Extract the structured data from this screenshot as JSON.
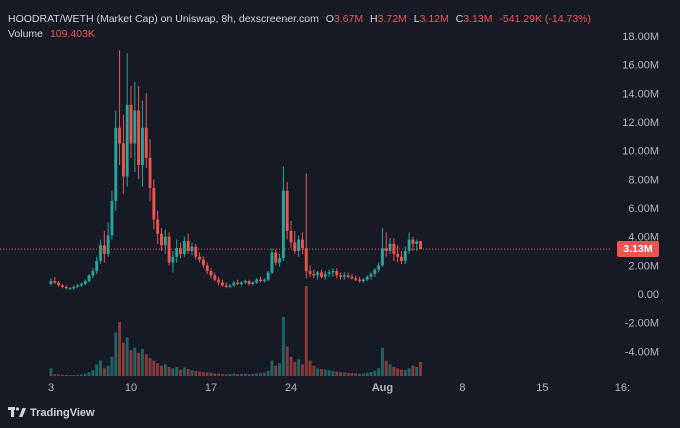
{
  "header": {
    "pair": "HOODRAT/WETH (Market Cap) on Uniswap, 8h, dexscreener.com",
    "open_label": "O",
    "open": "3.67M",
    "high_label": "H",
    "high": "3.72M",
    "low_label": "L",
    "low": "3.12M",
    "close_label": "C",
    "close": "3.13M",
    "change": "-541.29K (-14.73%)",
    "volume_label": "Volume",
    "volume": "109.403K"
  },
  "price_tag": "3.13M",
  "branding": "TradingView",
  "colors": {
    "background": "#161a25",
    "up": "#26a69a",
    "down": "#ef5350",
    "text": "#b2b5be"
  },
  "chart_data": {
    "type": "candlestick",
    "y_unit": "market cap (USD)",
    "ylim": [
      -5.0,
      18.5
    ],
    "y_ticks": [
      "18.00M",
      "16.00M",
      "14.00M",
      "12.00M",
      "10.00M",
      "8.00M",
      "6.00M",
      "4.00M",
      "2.00M",
      "0.00",
      "-2.00M",
      "-4.00M"
    ],
    "y_tick_values": [
      18,
      16,
      14,
      12,
      10,
      8,
      6,
      4,
      2,
      0,
      -2,
      -4
    ],
    "x_ticks": [
      "3",
      "10",
      "17",
      "24",
      "Aug",
      "8",
      "15",
      "16:"
    ],
    "x_tick_days": [
      3,
      10,
      17,
      24,
      32,
      39,
      46,
      53
    ],
    "grid": false,
    "last_price": 3.13,
    "candles_per_day": 3,
    "first_candle_day": 3,
    "ohlc_millions": [
      [
        0.7,
        1.1,
        0.6,
        0.9
      ],
      [
        0.9,
        1.2,
        0.7,
        0.8
      ],
      [
        0.8,
        0.9,
        0.5,
        0.6
      ],
      [
        0.6,
        0.7,
        0.4,
        0.5
      ],
      [
        0.5,
        0.6,
        0.3,
        0.4
      ],
      [
        0.4,
        0.5,
        0.3,
        0.4
      ],
      [
        0.4,
        0.6,
        0.3,
        0.5
      ],
      [
        0.5,
        0.7,
        0.4,
        0.6
      ],
      [
        0.6,
        0.8,
        0.5,
        0.7
      ],
      [
        0.7,
        1.0,
        0.6,
        0.9
      ],
      [
        0.9,
        1.4,
        0.8,
        1.3
      ],
      [
        1.3,
        1.8,
        1.1,
        1.6
      ],
      [
        1.6,
        2.6,
        1.4,
        2.3
      ],
      [
        2.3,
        3.8,
        2.1,
        3.4
      ],
      [
        3.4,
        4.4,
        2.2,
        2.8
      ],
      [
        2.8,
        5.0,
        2.6,
        4.1
      ],
      [
        4.1,
        7.2,
        3.8,
        6.5
      ],
      [
        6.5,
        12.8,
        5.8,
        11.6
      ],
      [
        11.6,
        17.0,
        9.0,
        10.5
      ],
      [
        10.5,
        12.5,
        7.0,
        8.2
      ],
      [
        8.2,
        16.8,
        7.5,
        13.2
      ],
      [
        13.2,
        14.5,
        9.5,
        10.5
      ],
      [
        10.5,
        14.8,
        8.5,
        12.8
      ],
      [
        12.8,
        14.5,
        8.0,
        9.0
      ],
      [
        9.0,
        13.5,
        7.5,
        11.6
      ],
      [
        11.6,
        14.0,
        8.8,
        9.5
      ],
      [
        9.5,
        10.8,
        6.5,
        7.4
      ],
      [
        7.4,
        8.0,
        4.5,
        5.2
      ],
      [
        5.2,
        5.8,
        3.5,
        4.2
      ],
      [
        4.2,
        4.6,
        3.0,
        3.4
      ],
      [
        3.4,
        4.5,
        2.8,
        4.0
      ],
      [
        4.0,
        4.3,
        2.0,
        2.2
      ],
      [
        2.2,
        3.0,
        1.5,
        2.6
      ],
      [
        2.6,
        3.8,
        2.2,
        3.2
      ],
      [
        3.2,
        3.6,
        2.5,
        2.8
      ],
      [
        2.8,
        4.0,
        2.6,
        3.7
      ],
      [
        3.7,
        4.2,
        2.8,
        3.0
      ],
      [
        3.0,
        3.6,
        2.7,
        3.3
      ],
      [
        3.3,
        3.5,
        2.4,
        2.6
      ],
      [
        2.6,
        2.9,
        2.2,
        2.4
      ],
      [
        2.4,
        2.6,
        1.8,
        2.0
      ],
      [
        2.0,
        2.2,
        1.4,
        1.6
      ],
      [
        1.6,
        1.8,
        1.1,
        1.3
      ],
      [
        1.3,
        1.5,
        0.9,
        1.0
      ],
      [
        1.0,
        1.2,
        0.6,
        0.8
      ],
      [
        0.8,
        1.0,
        0.5,
        0.6
      ],
      [
        0.6,
        0.8,
        0.4,
        0.5
      ],
      [
        0.5,
        0.7,
        0.4,
        0.6
      ],
      [
        0.6,
        0.9,
        0.5,
        0.8
      ],
      [
        0.8,
        1.0,
        0.6,
        0.7
      ],
      [
        0.7,
        0.9,
        0.6,
        0.8
      ],
      [
        0.8,
        1.0,
        0.7,
        0.9
      ],
      [
        0.9,
        1.0,
        0.6,
        0.7
      ],
      [
        0.7,
        0.9,
        0.6,
        0.8
      ],
      [
        0.8,
        1.1,
        0.7,
        1.0
      ],
      [
        1.0,
        1.2,
        0.8,
        0.9
      ],
      [
        0.9,
        1.1,
        0.8,
        1.0
      ],
      [
        1.0,
        1.6,
        0.9,
        1.5
      ],
      [
        1.5,
        3.2,
        1.4,
        2.9
      ],
      [
        2.9,
        3.1,
        2.0,
        2.2
      ],
      [
        2.2,
        2.8,
        1.9,
        2.5
      ],
      [
        2.5,
        8.9,
        2.3,
        7.2
      ],
      [
        7.2,
        7.8,
        3.8,
        4.4
      ],
      [
        4.4,
        5.1,
        3.2,
        3.6
      ],
      [
        3.6,
        4.4,
        2.8,
        3.0
      ],
      [
        3.0,
        4.1,
        2.6,
        3.8
      ],
      [
        3.8,
        4.3,
        2.8,
        3.2
      ],
      [
        3.2,
        8.4,
        1.1,
        1.6
      ],
      [
        1.6,
        2.0,
        1.2,
        1.4
      ],
      [
        1.4,
        1.7,
        1.1,
        1.3
      ],
      [
        1.3,
        1.6,
        1.0,
        1.5
      ],
      [
        1.5,
        1.7,
        1.1,
        1.2
      ],
      [
        1.2,
        1.6,
        1.0,
        1.4
      ],
      [
        1.4,
        1.7,
        1.2,
        1.5
      ],
      [
        1.5,
        1.8,
        1.2,
        1.6
      ],
      [
        1.6,
        1.8,
        1.1,
        1.3
      ],
      [
        1.3,
        1.5,
        1.0,
        1.2
      ],
      [
        1.2,
        1.5,
        1.0,
        1.3
      ],
      [
        1.3,
        1.5,
        1.1,
        1.2
      ],
      [
        1.2,
        1.4,
        1.0,
        1.1
      ],
      [
        1.1,
        1.3,
        0.9,
        1.0
      ],
      [
        1.0,
        1.2,
        0.8,
        0.9
      ],
      [
        0.9,
        1.1,
        0.8,
        1.0
      ],
      [
        1.0,
        1.3,
        0.9,
        1.2
      ],
      [
        1.2,
        1.5,
        1.0,
        1.4
      ],
      [
        1.4,
        1.8,
        1.2,
        1.7
      ],
      [
        1.7,
        2.2,
        1.5,
        2.0
      ],
      [
        2.0,
        4.6,
        1.9,
        3.2
      ],
      [
        3.2,
        4.3,
        2.6,
        3.0
      ],
      [
        3.0,
        3.9,
        2.8,
        3.5
      ],
      [
        3.5,
        3.9,
        2.3,
        2.8
      ],
      [
        2.8,
        3.4,
        2.2,
        2.6
      ],
      [
        2.6,
        3.0,
        2.1,
        2.3
      ],
      [
        2.3,
        3.3,
        2.1,
        3.0
      ],
      [
        3.0,
        4.3,
        2.8,
        3.8
      ],
      [
        3.8,
        4.0,
        3.0,
        3.5
      ],
      [
        3.5,
        3.8,
        3.0,
        3.67
      ],
      [
        3.67,
        3.72,
        3.12,
        3.13
      ]
    ],
    "volume_k": [
      60,
      15,
      12,
      10,
      8,
      6,
      8,
      10,
      12,
      18,
      30,
      45,
      90,
      120,
      60,
      80,
      150,
      340,
      420,
      260,
      300,
      200,
      220,
      180,
      210,
      170,
      140,
      120,
      100,
      80,
      90,
      70,
      60,
      70,
      50,
      65,
      55,
      45,
      40,
      35,
      30,
      28,
      25,
      20,
      18,
      15,
      14,
      16,
      18,
      15,
      16,
      18,
      14,
      16,
      20,
      22,
      25,
      40,
      120,
      80,
      100,
      460,
      230,
      150,
      110,
      130,
      90,
      700,
      120,
      80,
      60,
      55,
      50,
      45,
      40,
      35,
      30,
      28,
      25,
      22,
      20,
      18,
      20,
      25,
      30,
      40,
      60,
      220,
      120,
      90,
      70,
      60,
      50,
      45,
      60,
      80,
      70,
      109
    ]
  }
}
